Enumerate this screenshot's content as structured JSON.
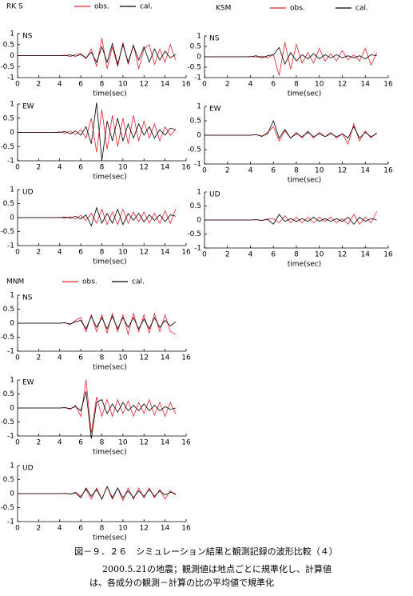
{
  "chart_data": [
    {
      "type": "line",
      "title": "RK S",
      "legend": true,
      "label": "NS",
      "xlabel": "time(sec)",
      "x": [
        0,
        0.5,
        1,
        1.5,
        2,
        2.5,
        3,
        3.5,
        4,
        4.5,
        5,
        5.5,
        6,
        6.5,
        7,
        7.5,
        8,
        8.5,
        9,
        9.5,
        10,
        10.5,
        11,
        11.5,
        12,
        12.5,
        13,
        13.5,
        14,
        14.5,
        15
      ],
      "xlim": [
        0,
        16
      ],
      "xticks": [
        0,
        2,
        4,
        6,
        8,
        10,
        12,
        14,
        16
      ],
      "ylim": [
        -1,
        1
      ],
      "yticks": [
        -1,
        -0.5,
        0,
        0.5,
        1
      ],
      "series": [
        {
          "name": "obs.",
          "color": "#e8202a",
          "values": [
            0,
            0,
            0,
            0,
            0,
            0,
            0,
            0,
            0,
            0.02,
            -0.05,
            0.05,
            0.1,
            -0.15,
            0.3,
            -0.5,
            0.8,
            -0.6,
            0.4,
            -0.5,
            0.6,
            -0.4,
            0.5,
            -0.6,
            0.3,
            0.5,
            -0.4,
            0.3,
            -0.3,
            0.5,
            -0.2
          ]
        },
        {
          "name": "cal.",
          "color": "#000000",
          "values": [
            0,
            0,
            0,
            0,
            0,
            0,
            0,
            0,
            0,
            0,
            0.03,
            -0.03,
            0.05,
            -0.1,
            0.15,
            -0.3,
            0.4,
            -0.3,
            0.55,
            -0.4,
            0.5,
            -0.3,
            0.45,
            -0.2,
            0.4,
            -0.3,
            0.3,
            -0.2,
            0.2,
            -0.1,
            0.05
          ]
        }
      ]
    },
    {
      "type": "line",
      "legend": false,
      "label": "EW",
      "xlabel": "time(sec)",
      "x": [
        0,
        0.5,
        1,
        1.5,
        2,
        2.5,
        3,
        3.5,
        4,
        4.5,
        5,
        5.5,
        6,
        6.5,
        7,
        7.5,
        8,
        8.5,
        9,
        9.5,
        10,
        10.5,
        11,
        11.5,
        12,
        12.5,
        13,
        13.5,
        14,
        14.5,
        15
      ],
      "xlim": [
        0,
        16
      ],
      "xticks": [
        0,
        2,
        4,
        6,
        8,
        10,
        12,
        14,
        16
      ],
      "ylim": [
        -1,
        1
      ],
      "yticks": [
        -1,
        -0.5,
        0,
        0.5,
        1
      ],
      "series": [
        {
          "color": "#e8202a",
          "values": [
            0,
            0,
            0,
            0,
            0,
            0,
            0,
            0,
            0.02,
            -0.03,
            0.05,
            -0.08,
            0.1,
            -0.2,
            0.5,
            -0.7,
            0.8,
            -0.6,
            0.6,
            -0.5,
            0.5,
            -0.4,
            0.6,
            -0.3,
            0.4,
            -0.2,
            0.3,
            -0.3,
            0.2,
            -0.1,
            0.1
          ]
        },
        {
          "color": "#000000",
          "values": [
            0,
            0,
            0,
            0,
            0,
            0,
            0,
            0,
            0,
            0.03,
            -0.05,
            0.05,
            -0.1,
            0.2,
            -0.4,
            1.05,
            -1.0,
            0.4,
            -0.3,
            0.5,
            -0.3,
            0.3,
            -0.2,
            0.3,
            -0.1,
            0.2,
            -0.2,
            0.1,
            -0.1,
            0.15,
            0.1
          ]
        }
      ]
    },
    {
      "type": "line",
      "legend": false,
      "label": "UD",
      "xlabel": "time(sec)",
      "x": [
        0,
        0.5,
        1,
        1.5,
        2,
        2.5,
        3,
        3.5,
        4,
        4.5,
        5,
        5.5,
        6,
        6.5,
        7,
        7.5,
        8,
        8.5,
        9,
        9.5,
        10,
        10.5,
        11,
        11.5,
        12,
        12.5,
        13,
        13.5,
        14,
        14.5,
        15
      ],
      "xlim": [
        0,
        16
      ],
      "xticks": [
        0,
        2,
        4,
        6,
        8,
        10,
        12,
        14,
        16
      ],
      "ylim": [
        -1,
        1
      ],
      "yticks": [
        -1,
        -0.5,
        0,
        0.5,
        1
      ],
      "series": [
        {
          "color": "#e8202a",
          "values": [
            0,
            0,
            0,
            0,
            0,
            0,
            0,
            0,
            0.01,
            -0.02,
            0.03,
            -0.05,
            0.08,
            -0.1,
            0.15,
            -0.2,
            0.3,
            -0.25,
            0.2,
            -0.25,
            0.3,
            -0.2,
            0.2,
            -0.15,
            0.2,
            -0.2,
            0.15,
            -0.2,
            0.25,
            -0.2,
            0.3
          ]
        },
        {
          "color": "#000000",
          "values": [
            0,
            0,
            0,
            0,
            0,
            0,
            0,
            0,
            0,
            0.02,
            -0.02,
            0.05,
            -0.05,
            0.1,
            -0.3,
            0.35,
            -0.2,
            0.15,
            -0.2,
            0.3,
            -0.25,
            0.15,
            -0.1,
            0.15,
            -0.15,
            0.1,
            -0.1,
            0.1,
            -0.15,
            0.1,
            0.05
          ]
        }
      ]
    },
    {
      "type": "line",
      "title": "KSM",
      "legend": true,
      "label": "NS",
      "xlabel": "time(sec)",
      "x": [
        0,
        0.5,
        1,
        1.5,
        2,
        2.5,
        3,
        3.5,
        4,
        4.5,
        5,
        5.5,
        6,
        6.5,
        7,
        7.5,
        8,
        8.5,
        9,
        9.5,
        10,
        10.5,
        11,
        11.5,
        12,
        12.5,
        13,
        13.5,
        14,
        14.5,
        15
      ],
      "xlim": [
        0,
        16
      ],
      "xticks": [
        0,
        2,
        4,
        6,
        8,
        10,
        12,
        14,
        16
      ],
      "ylim": [
        -1,
        1
      ],
      "yticks": [
        -1,
        -0.5,
        0,
        0.5,
        1
      ],
      "series": [
        {
          "name": "obs.",
          "color": "#e8202a",
          "values": [
            0,
            0,
            0,
            0,
            0,
            0,
            0,
            0,
            0.02,
            -0.02,
            0.03,
            -0.05,
            0.1,
            -0.9,
            0.7,
            -0.6,
            0.6,
            -0.3,
            0.2,
            -0.3,
            0.4,
            -0.2,
            0.15,
            -0.2,
            0.3,
            -0.15,
            0.1,
            -0.2,
            0.4,
            -0.4,
            0.2
          ]
        },
        {
          "name": "cal.",
          "color": "#000000",
          "values": [
            0,
            0,
            0,
            0,
            0,
            0,
            0,
            0,
            0,
            0.05,
            -0.05,
            0.05,
            0.1,
            0.45,
            -0.35,
            0.2,
            -0.2,
            0.1,
            -0.1,
            0.15,
            -0.1,
            0.1,
            -0.05,
            0.1,
            -0.05,
            0.05,
            -0.05,
            0.05,
            -0.1,
            0.1,
            0.05
          ]
        }
      ]
    },
    {
      "type": "line",
      "legend": false,
      "label": "EW",
      "xlabel": "time(sec)",
      "x": [
        0,
        0.5,
        1,
        1.5,
        2,
        2.5,
        3,
        3.5,
        4,
        4.5,
        5,
        5.5,
        6,
        6.5,
        7,
        7.5,
        8,
        8.5,
        9,
        9.5,
        10,
        10.5,
        11,
        11.5,
        12,
        12.5,
        13,
        13.5,
        14,
        14.5,
        15
      ],
      "xlim": [
        0,
        16
      ],
      "xticks": [
        0,
        2,
        4,
        6,
        8,
        10,
        12,
        14,
        16
      ],
      "ylim": [
        -1,
        1
      ],
      "yticks": [
        -1,
        -0.5,
        0,
        0.5,
        1
      ],
      "series": [
        {
          "color": "#e8202a",
          "values": [
            0,
            0,
            0,
            0,
            0,
            0,
            0,
            0,
            0,
            0.02,
            -0.05,
            0.1,
            0.3,
            -0.2,
            0.15,
            -0.1,
            0.1,
            -0.1,
            0.15,
            -0.1,
            0.1,
            -0.05,
            0.1,
            -0.1,
            0.05,
            -0.3,
            0.4,
            -0.2,
            0.15,
            -0.1,
            0.1
          ]
        },
        {
          "color": "#000000",
          "values": [
            0,
            0,
            0,
            0,
            0,
            0,
            0,
            0,
            0,
            0.02,
            -0.03,
            0.05,
            0.5,
            -0.1,
            0.2,
            -0.1,
            0.05,
            -0.05,
            0.1,
            -0.05,
            0.05,
            -0.05,
            0.05,
            -0.05,
            0.05,
            -0.1,
            0.3,
            -0.1,
            0.1,
            -0.05,
            0.05
          ]
        }
      ]
    },
    {
      "type": "line",
      "legend": false,
      "label": "UD",
      "xlabel": "time(sec)",
      "x": [
        0,
        0.5,
        1,
        1.5,
        2,
        2.5,
        3,
        3.5,
        4,
        4.5,
        5,
        5.5,
        6,
        6.5,
        7,
        7.5,
        8,
        8.5,
        9,
        9.5,
        10,
        10.5,
        11,
        11.5,
        12,
        12.5,
        13,
        13.5,
        14,
        14.5,
        15
      ],
      "xlim": [
        0,
        16
      ],
      "xticks": [
        0,
        2,
        4,
        6,
        8,
        10,
        12,
        14,
        16
      ],
      "ylim": [
        -1,
        1
      ],
      "yticks": [
        -1,
        -0.5,
        0,
        0.5,
        1
      ],
      "series": [
        {
          "color": "#e8202a",
          "values": [
            0,
            0,
            0,
            0,
            0,
            0,
            0,
            0,
            0,
            0.01,
            -0.02,
            0.03,
            0.05,
            -0.1,
            0.15,
            -0.1,
            0.1,
            -0.1,
            0.1,
            -0.1,
            0.1,
            -0.05,
            0.1,
            -0.1,
            0.05,
            -0.15,
            0.2,
            -0.15,
            0.1,
            -0.1,
            0.3
          ]
        },
        {
          "color": "#000000",
          "values": [
            0,
            0,
            0,
            0,
            0,
            0,
            0,
            0,
            0,
            0.01,
            -0.01,
            0.02,
            -0.15,
            0.2,
            -0.05,
            0.05,
            -0.05,
            0.05,
            -0.05,
            0.1,
            -0.05,
            0.05,
            -0.05,
            0.05,
            -0.05,
            0.1,
            -0.15,
            0.1,
            -0.05,
            0.05,
            0
          ]
        }
      ]
    },
    {
      "type": "line",
      "title": "MNM",
      "legend": true,
      "label": "NS",
      "xlabel": "time(sec)",
      "x": [
        0,
        0.5,
        1,
        1.5,
        2,
        2.5,
        3,
        3.5,
        4,
        4.5,
        5,
        5.5,
        6,
        6.5,
        7,
        7.5,
        8,
        8.5,
        9,
        9.5,
        10,
        10.5,
        11,
        11.5,
        12,
        12.5,
        13,
        13.5,
        14,
        14.5,
        15
      ],
      "xlim": [
        0,
        16
      ],
      "xticks": [
        0,
        2,
        4,
        6,
        8,
        10,
        12,
        14,
        16
      ],
      "ylim": [
        -1,
        1
      ],
      "yticks": [
        -1,
        -0.5,
        0,
        0.5,
        1
      ],
      "series": [
        {
          "name": "obs.",
          "color": "#e8202a",
          "values": [
            0,
            0,
            0,
            0,
            0,
            0,
            0,
            0,
            0,
            0.02,
            -0.05,
            0.1,
            0.2,
            -0.3,
            0.3,
            -0.3,
            0.3,
            -0.35,
            0.35,
            -0.3,
            0.3,
            -0.4,
            0.35,
            -0.3,
            0.3,
            -0.35,
            0.35,
            -0.3,
            0.3,
            -0.3,
            -0.4
          ]
        },
        {
          "name": "cal.",
          "color": "#000000",
          "values": [
            0,
            0,
            0,
            0,
            0,
            0,
            0,
            0,
            0,
            0.01,
            -0.03,
            0.05,
            0.1,
            -0.2,
            0.25,
            -0.15,
            0.2,
            -0.2,
            0.25,
            -0.2,
            0.2,
            -0.15,
            0.2,
            -0.2,
            0.15,
            -0.2,
            0.2,
            -0.15,
            0.1,
            -0.1,
            0.05
          ]
        }
      ]
    },
    {
      "type": "line",
      "legend": false,
      "label": "EW",
      "xlabel": "time(sec)",
      "x": [
        0,
        0.5,
        1,
        1.5,
        2,
        2.5,
        3,
        3.5,
        4,
        4.5,
        5,
        5.5,
        6,
        6.5,
        7,
        7.5,
        8,
        8.5,
        9,
        9.5,
        10,
        10.5,
        11,
        11.5,
        12,
        12.5,
        13,
        13.5,
        14,
        14.5,
        15
      ],
      "xlim": [
        0,
        16
      ],
      "xticks": [
        0,
        2,
        4,
        6,
        8,
        10,
        12,
        14,
        16
      ],
      "ylim": [
        -1,
        1
      ],
      "yticks": [
        -1,
        -0.5,
        0,
        0.5,
        1
      ],
      "series": [
        {
          "color": "#e8202a",
          "values": [
            0,
            0,
            0,
            0,
            0,
            0,
            0,
            0,
            0,
            0.02,
            -0.05,
            0.1,
            -0.3,
            1.0,
            -0.9,
            0.4,
            -0.3,
            0.3,
            -0.3,
            0.3,
            -0.2,
            0.25,
            -0.3,
            0.2,
            -0.2,
            0.3,
            -0.25,
            0.2,
            -0.3,
            0.2,
            -0.2
          ]
        },
        {
          "color": "#000000",
          "values": [
            0,
            0,
            0,
            0,
            0,
            0,
            0,
            0,
            0,
            0.01,
            -0.02,
            0.05,
            -0.1,
            0.6,
            -1.1,
            0.2,
            0.3,
            -0.2,
            0.15,
            -0.15,
            0.2,
            -0.1,
            0.1,
            -0.1,
            0.15,
            -0.1,
            0.1,
            -0.1,
            0.05,
            -0.05,
            0
          ]
        }
      ]
    },
    {
      "type": "line",
      "legend": false,
      "label": "UD",
      "xlabel": "time(sec)",
      "x": [
        0,
        0.5,
        1,
        1.5,
        2,
        2.5,
        3,
        3.5,
        4,
        4.5,
        5,
        5.5,
        6,
        6.5,
        7,
        7.5,
        8,
        8.5,
        9,
        9.5,
        10,
        10.5,
        11,
        11.5,
        12,
        12.5,
        13,
        13.5,
        14,
        14.5,
        15
      ],
      "xlim": [
        0,
        16
      ],
      "xticks": [
        0,
        2,
        4,
        6,
        8,
        10,
        12,
        14,
        16
      ],
      "ylim": [
        -1,
        1
      ],
      "yticks": [
        -1,
        -0.5,
        0,
        0.5,
        1
      ],
      "series": [
        {
          "color": "#e8202a",
          "values": [
            0,
            0,
            0,
            0,
            0,
            0,
            0,
            0,
            0,
            0.01,
            -0.02,
            0.05,
            -0.1,
            0.15,
            -0.2,
            0.2,
            -0.2,
            0.25,
            -0.2,
            0.2,
            -0.25,
            0.2,
            -0.2,
            0.2,
            -0.15,
            0.2,
            -0.15,
            0.15,
            -0.2,
            0.1,
            -0.05
          ]
        },
        {
          "color": "#000000",
          "values": [
            0,
            0,
            0,
            0,
            0,
            0,
            0,
            0,
            0,
            0.01,
            -0.02,
            0.03,
            -0.15,
            0.2,
            -0.1,
            0.15,
            -0.2,
            0.25,
            -0.15,
            0.2,
            -0.15,
            0.1,
            -0.15,
            0.1,
            -0.1,
            0.15,
            -0.1,
            0.1,
            -0.05,
            0.05,
            0
          ]
        }
      ]
    }
  ],
  "caption": {
    "figure": "図－９．２６　シミュレーション結果と観測記録の波形比較（４）",
    "lines": [
      "2000.5.21の地震；観測値は地点ごとに規準化し、計算値",
      "は、各成分の観測－計算の比の平均値で規準化"
    ]
  }
}
